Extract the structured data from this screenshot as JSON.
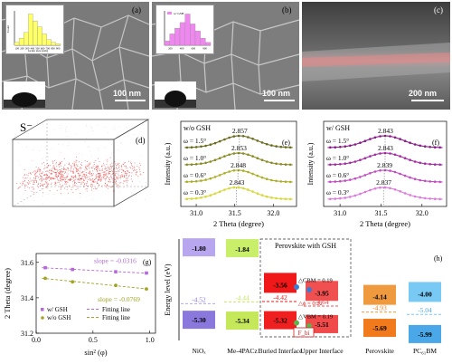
{
  "panels": {
    "a": {
      "label": "(a)",
      "scale": "100 nm",
      "histogram": {
        "ylabel": "Count",
        "xlabel": "Grain size (nm)",
        "ticks": [
          "100",
          "200",
          "300",
          "400",
          "500",
          "600",
          "700",
          "800",
          "900"
        ],
        "values": [
          2,
          5,
          9,
          22,
          17,
          13,
          8,
          4,
          2,
          1
        ],
        "color": "#ffff66"
      }
    },
    "b": {
      "label": "(b)",
      "scale": "100 nm",
      "legend": "w/ GSH",
      "histogram": {
        "ticks": [
          "200",
          "400",
          "600",
          "800"
        ],
        "values": [
          3,
          8,
          12,
          16,
          22,
          15,
          10,
          5,
          2
        ],
        "color": "#ee88ee"
      }
    },
    "c": {
      "label": "(c)",
      "scale": "200 nm"
    },
    "d": {
      "label": "(d)",
      "ion": "S⁻"
    },
    "e": {
      "label": "(e)",
      "series_label": "w/o GSH"
    },
    "f": {
      "label": "(f)",
      "series_label": "w/ GSH"
    },
    "g": {
      "label": "(g)",
      "xlabel": "sin² (φ)"
    },
    "h": {
      "label": "(h)",
      "ylabel": "Energy level (eV)",
      "header": "Perovskite with GSH"
    }
  },
  "chart_data": [
    {
      "type": "line",
      "id": "e",
      "title": "w/o GSH",
      "xlabel": "2 Theta (degree)",
      "ylabel": "Intensity (a.u.)",
      "xlim": [
        30.8,
        32.3
      ],
      "xticks": [
        "31.0",
        "31.5",
        "32.0"
      ],
      "series": [
        {
          "name": "ω = 1.5°",
          "peak": 31.56,
          "peak_label": "2.857",
          "color": "#6b6b1e"
        },
        {
          "name": "ω = 1.0°",
          "peak": 31.55,
          "peak_label": "2.853",
          "color": "#8a8a24"
        },
        {
          "name": "ω = 0.6°",
          "peak": 31.54,
          "peak_label": "2.848",
          "color": "#adad2a"
        },
        {
          "name": "ω = 0.3°",
          "peak": 31.52,
          "peak_label": "2.843",
          "color": "#d8d83a"
        }
      ]
    },
    {
      "type": "line",
      "id": "f",
      "title": "w/ GSH",
      "xlabel": "2 Theta (degree)",
      "ylabel": "Intensity (a.u.)",
      "xlim": [
        30.8,
        32.3
      ],
      "xticks": [
        "31.0",
        "31.5",
        "32.0"
      ],
      "series": [
        {
          "name": "ω = 1.5°",
          "peak": 31.55,
          "peak_label": "2.843",
          "color": "#8a1a8a"
        },
        {
          "name": "ω = 1.0°",
          "peak": 31.55,
          "peak_label": "2.843",
          "color": "#a52aa5"
        },
        {
          "name": "ω = 0.6°",
          "peak": 31.54,
          "peak_label": "2.839",
          "color": "#c24cc2"
        },
        {
          "name": "ω = 0.3°",
          "peak": 31.53,
          "peak_label": "2.837",
          "color": "#dd7add"
        }
      ]
    },
    {
      "type": "scatter",
      "id": "g",
      "xlabel": "sin² (φ)",
      "ylabel": "2 Theta (degree)",
      "xlim": [
        0.0,
        1.05
      ],
      "ylim": [
        31.2,
        31.65
      ],
      "xticks": [
        "0.0",
        "0.5",
        "1.0"
      ],
      "yticks": [
        "31.2",
        "31.4",
        "31.6"
      ],
      "series": [
        {
          "name": "w/ GSH",
          "x": [
            0.08,
            0.32,
            0.7,
            0.97
          ],
          "y": [
            31.57,
            31.56,
            31.547,
            31.54
          ],
          "color": "#b36ad6",
          "fit_label": "Fitting line",
          "slope_label": "slope = -0.0316"
        },
        {
          "name": "w/o GSH",
          "x": [
            0.08,
            0.32,
            0.7,
            0.97
          ],
          "y": [
            31.51,
            31.49,
            31.47,
            31.45
          ],
          "color": "#a3a323",
          "fit_label": "Fitting line",
          "slope_label": "slope = -0.0769"
        }
      ]
    },
    {
      "type": "bar",
      "id": "h",
      "ylabel": "Energy level (eV)",
      "categories": [
        "NiOₓ",
        "Me-4PACz",
        "Buried Interface",
        "Upper Interface",
        "Perovskite",
        "PC₆₁BM"
      ],
      "upper": [
        -1.8,
        -1.84,
        -3.56,
        -3.95,
        -4.14,
        -4.0
      ],
      "fermi": [
        -4.52,
        -4.44,
        -4.42,
        -4.64,
        -4.93,
        -5.04
      ],
      "lower": [
        -5.3,
        -5.34,
        -5.32,
        -5.51,
        -5.69,
        -5.99
      ],
      "upper_labels": [
        "-1.80",
        "-1.84",
        "-3.56",
        "-3.95",
        "-4.14",
        "-4.00"
      ],
      "fermi_labels": [
        "-4.52",
        "-4.44",
        "-4.42",
        "-4.64",
        "-4.93",
        "-5.04"
      ],
      "lower_labels": [
        "-5.30",
        "-5.34",
        "-5.32",
        "-5.51",
        "-5.69",
        "-5.99"
      ],
      "annotations": [
        "△CBM = 0.19",
        "△ϕ = 0.22",
        "△VBM = 0.19",
        "F_bi"
      ],
      "ylim": [
        -6.3,
        -1.4
      ]
    }
  ]
}
